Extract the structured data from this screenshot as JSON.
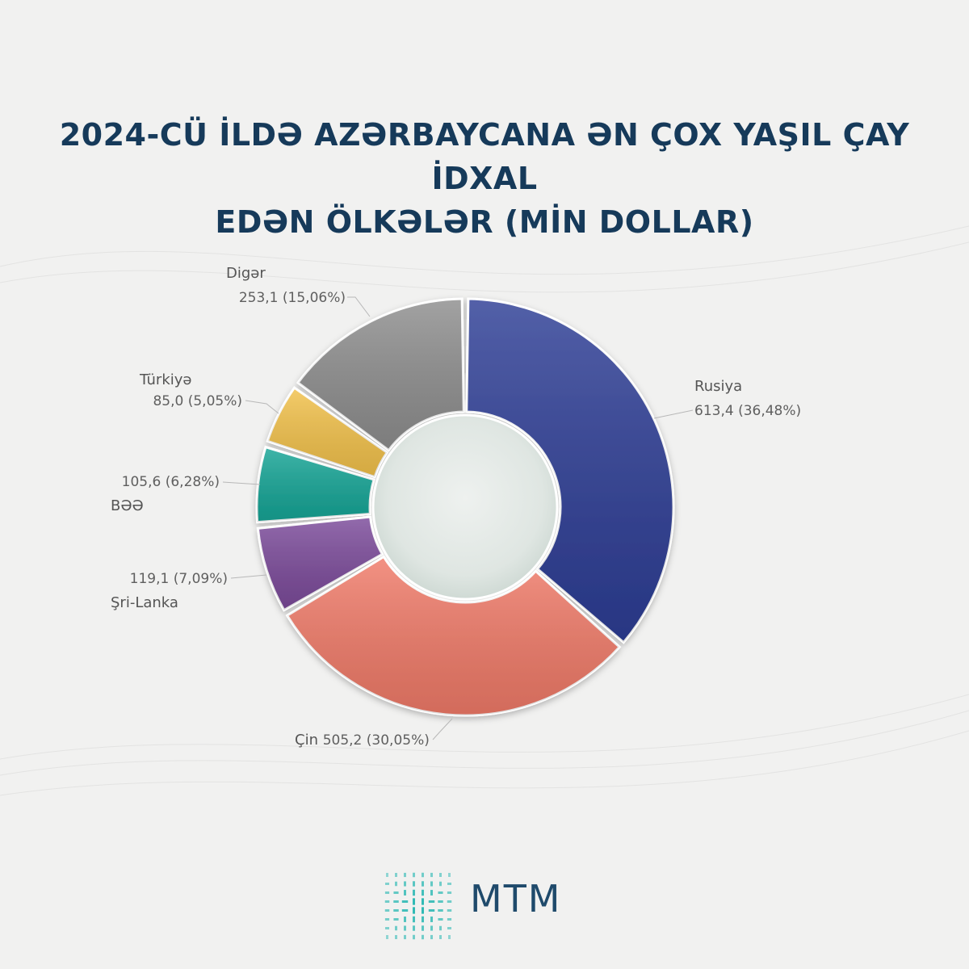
{
  "title_line1": "2024-CÜ İLDƏ AZƏRBAYCANA ƏN ÇOX YAŞIL ÇAY İDXAL",
  "title_line2": "EDƏN ÖLKƏLƏR (MİN DOLLAR)",
  "brand": "MTM",
  "colors": {
    "title": "#163a5a",
    "brand": "#1f4a6b",
    "logo_accent": "#1fb5b0"
  },
  "chart_data": {
    "type": "pie",
    "donut": true,
    "unit": "MİN DOLLAR",
    "slices": [
      {
        "name": "Rusiya",
        "value": 613.4,
        "value_label": "613,4",
        "percent": 36.48,
        "percent_label": "(36,48%)",
        "color": "#2d3d95"
      },
      {
        "name": "Çin",
        "value": 505.2,
        "value_label": "505,2",
        "percent": 30.05,
        "percent_label": "(30,05%)",
        "color": "#f07a68"
      },
      {
        "name": "Şri-Lanka",
        "value": 119.1,
        "value_label": "119,1",
        "percent": 7.09,
        "percent_label": "(7,09%)",
        "color": "#7b4a9a"
      },
      {
        "name": "BƏƏ",
        "value": 105.6,
        "value_label": "105,6",
        "percent": 6.28,
        "percent_label": "(6,28%)",
        "color": "#15a596"
      },
      {
        "name": "Türkiyə",
        "value": 85.0,
        "value_label": "85,0",
        "percent": 5.05,
        "percent_label": "(5,05%)",
        "color": "#f2c14a"
      },
      {
        "name": "Digər",
        "value": 253.1,
        "value_label": "253,1",
        "percent": 15.06,
        "percent_label": "(15,06%)",
        "color": "#8e8e8e"
      }
    ]
  }
}
